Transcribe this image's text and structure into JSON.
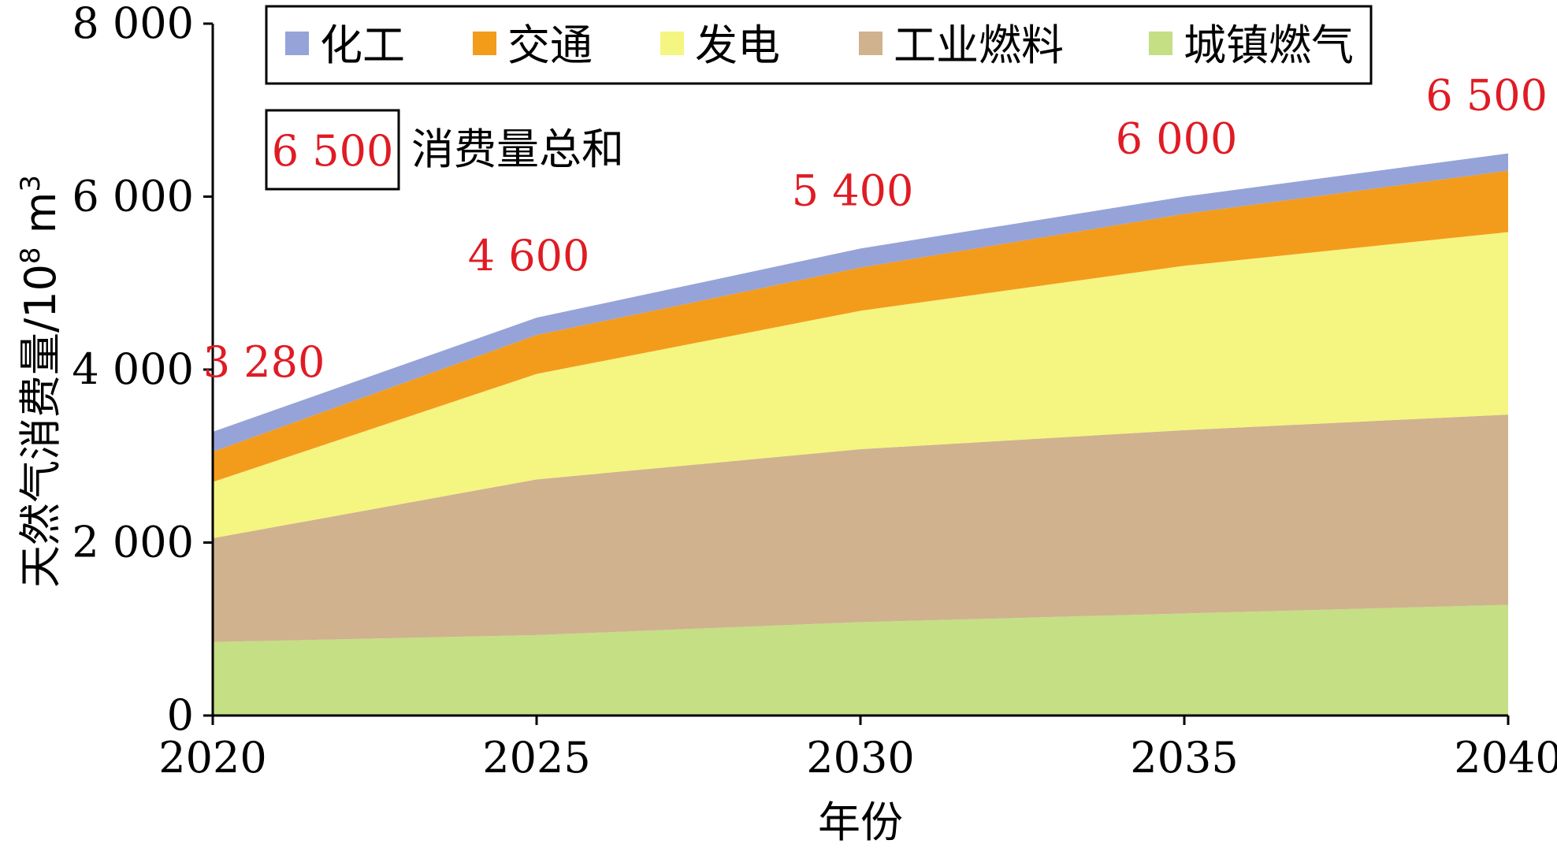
{
  "chart_data": {
    "type": "area",
    "stacked": true,
    "x": [
      2020,
      2025,
      2030,
      2035,
      2040
    ],
    "x_ticks": [
      "2020",
      "2025",
      "2030",
      "2035",
      "2040"
    ],
    "xlabel": "年份",
    "ylabel_main": "天然气消费量/10",
    "ylabel_exp": "8",
    "ylabel_unit": " m",
    "ylabel_unit_exp": "3",
    "ylim": [
      0,
      8000
    ],
    "y_ticks": [
      0,
      2000,
      4000,
      6000,
      8000
    ],
    "y_tick_labels": [
      "0",
      "2 000",
      "4 000",
      "6 000",
      "8 000"
    ],
    "series": [
      {
        "name": "城镇燃气",
        "color": "#c5df84",
        "values": [
          850,
          930,
          1080,
          1180,
          1280
        ]
      },
      {
        "name": "工业燃料",
        "color": "#d0b28f",
        "values": [
          1200,
          1800,
          2000,
          2120,
          2200
        ]
      },
      {
        "name": "发电",
        "color": "#f5f582",
        "values": [
          650,
          1220,
          1600,
          1900,
          2110
        ]
      },
      {
        "name": "交通",
        "color": "#f39c1c",
        "values": [
          350,
          450,
          500,
          600,
          710
        ]
      },
      {
        "name": "化工",
        "color": "#95a3d8",
        "values": [
          230,
          200,
          220,
          200,
          200
        ]
      }
    ],
    "legend_order": [
      "化工",
      "交通",
      "发电",
      "工业燃料",
      "城镇燃气"
    ],
    "totals": [
      3280,
      4600,
      5400,
      6000,
      6500
    ],
    "total_labels": [
      "3 280",
      "4 600",
      "5 400",
      "6 000",
      "6 500"
    ],
    "total_legend": {
      "value_text": "6 500",
      "label": "消费量总和"
    },
    "legend_position": "top"
  }
}
